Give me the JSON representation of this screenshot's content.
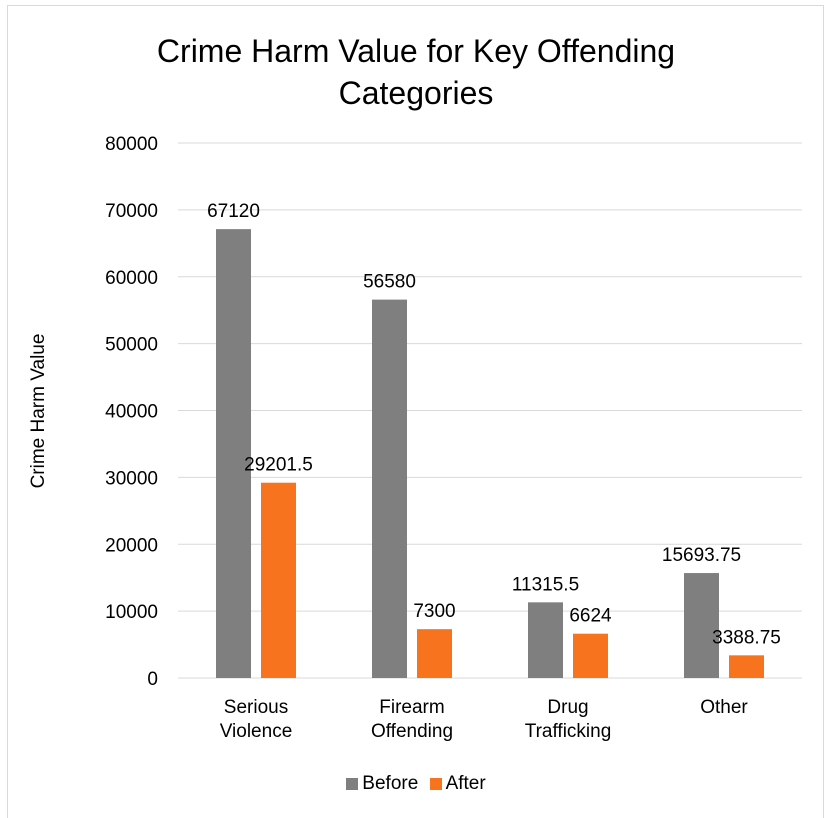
{
  "colors": {
    "before": "#7f7f7f",
    "after": "#f7731e",
    "grid": "#d9d9d9"
  },
  "chart_data": {
    "type": "bar",
    "title_lines": [
      "Crime Harm Value for Key Offending",
      "Categories"
    ],
    "ylabel": "Crime Harm Value",
    "xlabel": "",
    "ylim": [
      0,
      80000
    ],
    "yticks": [
      "80000",
      "70000",
      "60000",
      "50000",
      "40000",
      "30000",
      "20000",
      "10000",
      "0"
    ],
    "categories": [
      [
        "Serious",
        "Violence"
      ],
      [
        "Firearm",
        "Offending"
      ],
      [
        "Drug",
        "Trafficking"
      ],
      [
        "Other"
      ]
    ],
    "series": [
      {
        "name": "Before",
        "values": [
          67120,
          56580,
          11315.5,
          15693.75
        ],
        "labels": [
          "67120",
          "56580",
          "11315.5",
          "15693.75"
        ]
      },
      {
        "name": "After",
        "values": [
          29201.5,
          7300,
          6624,
          3388.75
        ],
        "labels": [
          "29201.5",
          "7300",
          "6624",
          "3388.75"
        ]
      }
    ],
    "grid": true,
    "legend": "bottom"
  }
}
